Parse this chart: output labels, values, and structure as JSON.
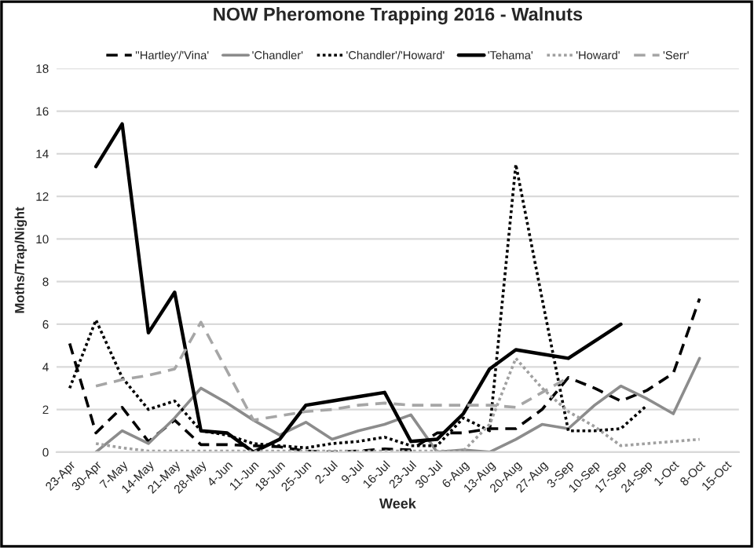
{
  "chart_data": {
    "type": "line",
    "title": "NOW Pheromone Trapping 2016 - Walnuts",
    "xlabel": "Week",
    "ylabel": "Moths/Trap/Night",
    "categories": [
      "23-Apr",
      "30-Apr",
      "7-May",
      "14-May",
      "21-May",
      "28-May",
      "4-Jun",
      "11-Jun",
      "18-Jun",
      "25-Jun",
      "2-Jul",
      "9-Jul",
      "16-Jul",
      "23-Jul",
      "30-Jul",
      "6-Aug",
      "13-Aug",
      "20-Aug",
      "27-Aug",
      "3-Sep",
      "10-Sep",
      "17-Sep",
      "24-Sep",
      "1-Oct",
      "8-Oct",
      "15-Oct"
    ],
    "series": [
      {
        "name": "''Hartley'/'Vina'",
        "color": "#000000",
        "line_style": "dashed",
        "values": [
          5.1,
          0.9,
          2.1,
          0.5,
          1.5,
          0.35,
          0.35,
          0.3,
          0.25,
          0.05,
          0,
          0.05,
          0.15,
          0.1,
          0.9,
          0.9,
          1.1,
          1.1,
          2.0,
          3.5,
          3.0,
          2.4,
          2.9,
          3.7,
          7.2,
          null
        ]
      },
      {
        "name": "'Chandler'",
        "color": "#8c8c8c",
        "line_style": "solid",
        "values": [
          null,
          0,
          1.0,
          0.4,
          1.6,
          3.0,
          2.3,
          1.5,
          0.8,
          1.4,
          0.6,
          1.0,
          1.3,
          1.75,
          0,
          0.1,
          0,
          0.6,
          1.3,
          1.1,
          2.2,
          3.1,
          2.5,
          1.8,
          4.4,
          null
        ]
      },
      {
        "name": "'Chandler'/'Howard'",
        "color": "#000000",
        "line_style": "dotted",
        "values": [
          3.0,
          6.2,
          3.5,
          2.0,
          2.4,
          1.0,
          0.8,
          0.4,
          0.3,
          0.2,
          0.4,
          0.5,
          0.7,
          0.3,
          0.3,
          1.6,
          1.0,
          13.5,
          7.2,
          1.0,
          1.0,
          1.1,
          2.2,
          null,
          null,
          null
        ]
      },
      {
        "name": "'Tehama'",
        "color": "#000000",
        "line_style": "solid",
        "values": [
          null,
          13.4,
          15.4,
          5.6,
          7.5,
          1.0,
          0.9,
          0,
          0.6,
          2.2,
          2.4,
          2.6,
          2.8,
          0.5,
          0.6,
          1.8,
          3.9,
          4.8,
          4.6,
          4.4,
          5.2,
          6.0,
          null,
          null,
          null,
          null
        ]
      },
      {
        "name": "'Howard'",
        "color": "#a0a0a0",
        "line_style": "dotted",
        "values": [
          null,
          0.4,
          0.2,
          0.05,
          0.05,
          0.05,
          0.05,
          0.05,
          0.05,
          0.05,
          0.05,
          0.05,
          0.05,
          0.05,
          0.05,
          0.05,
          1.3,
          4.4,
          3.0,
          1.9,
          1.2,
          0.3,
          0.4,
          0.5,
          0.6,
          null
        ]
      },
      {
        "name": "'Serr'",
        "color": "#a6a6a6",
        "line_style": "dashed",
        "values": [
          null,
          3.1,
          3.4,
          3.6,
          3.9,
          6.1,
          3.8,
          1.5,
          1.7,
          1.9,
          2.0,
          2.2,
          2.3,
          2.2,
          2.2,
          2.2,
          2.2,
          2.1,
          2.8,
          3.5,
          null,
          null,
          null,
          null,
          null,
          null
        ]
      }
    ],
    "ylim": [
      0,
      18
    ],
    "yticks": [
      0,
      2,
      4,
      6,
      8,
      10,
      12,
      14,
      16,
      18
    ],
    "grid": "y",
    "legend": "top",
    "marker": "none"
  }
}
